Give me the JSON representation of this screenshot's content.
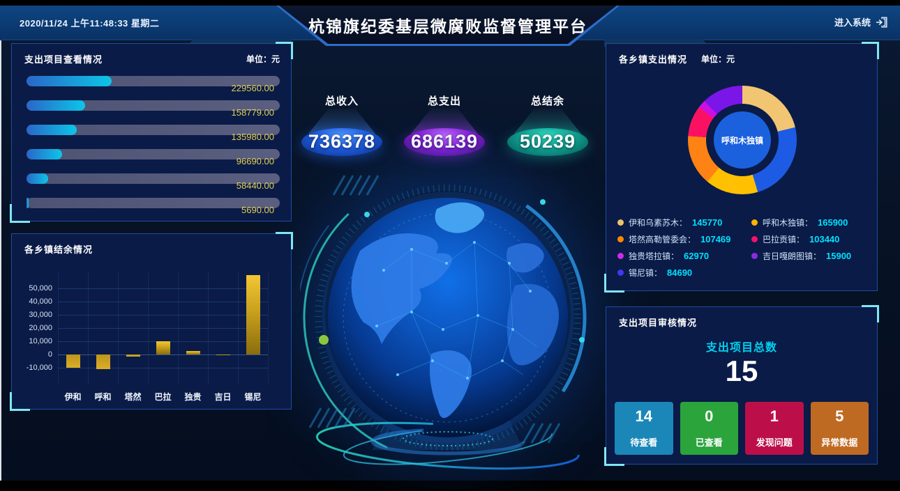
{
  "header": {
    "datetime": "2020/11/24 上午11:48:33 星期二",
    "title": "杭锦旗纪委基层微腐败监督管理平台",
    "enter_system_label": "进入系统"
  },
  "kpis": [
    {
      "label": "总收入",
      "value": "736378",
      "disc": [
        "#4f95ff",
        "#1f5ce0",
        "#0a2f80"
      ],
      "cone": "rgba(70,150,255,0.38)",
      "glow": "rgba(40,110,255,0.45)"
    },
    {
      "label": "总支出",
      "value": "686139",
      "disc": [
        "#c06aff",
        "#8a1fd8",
        "#3e0d72"
      ],
      "cone": "rgba(170,80,255,0.38)",
      "glow": "rgba(150,50,240,0.45)"
    },
    {
      "label": "总结余",
      "value": "50239",
      "disc": [
        "#2fd8c0",
        "#12a392",
        "#05554e"
      ],
      "cone": "rgba(40,210,190,0.34)",
      "glow": "rgba(20,190,170,0.40)"
    }
  ],
  "expense_view_panel": {
    "title": "支出项目查看情况",
    "unit": "单位：元",
    "bars": [
      {
        "display": "229560.00",
        "value": 229560
      },
      {
        "display": "158779.00",
        "value": 158779
      },
      {
        "display": "135980.00",
        "value": 135980
      },
      {
        "display": "96690.00",
        "value": 96690
      },
      {
        "display": "58440.00",
        "value": 58440
      },
      {
        "display": "5690.00",
        "value": 5690
      }
    ]
  },
  "balance_panel": {
    "title": "各乡镇结余情况",
    "categories": [
      "伊和",
      "呼和",
      "塔然",
      "巴拉",
      "独贵",
      "吉日",
      "锡尼"
    ],
    "values": [
      -10200,
      -11000,
      -1500,
      9800,
      2800,
      200,
      60139
    ],
    "ylim": [
      -22000,
      62000
    ],
    "yticks": [
      {
        "label": "50,000",
        "value": 50000
      },
      {
        "label": "40,000",
        "value": 40000
      },
      {
        "label": "30,000",
        "value": 30000
      },
      {
        "label": "20,000",
        "value": 20000
      },
      {
        "label": "10,000",
        "value": 10000
      },
      {
        "label": "0",
        "value": 0
      },
      {
        "label": "-10,000",
        "value": -10000
      }
    ]
  },
  "town_expense_panel": {
    "title": "各乡镇支出情况",
    "unit": "单位：元",
    "center_label": "呼和木独镇",
    "legend_separator": "：",
    "slices": [
      {
        "name": "伊和乌素苏木",
        "value": 145770,
        "color": "#f2c572"
      },
      {
        "name": "呼和木独镇",
        "value": 165900,
        "color": "#1e5be4"
      },
      {
        "name": "塔然高勒管委会",
        "value": 107469,
        "color": "#ffc002"
      },
      {
        "name": "巴拉贡镇",
        "value": 103440,
        "color": "#ff8314"
      },
      {
        "name": "独贵塔拉镇",
        "value": 62970,
        "color": "#fb1162"
      },
      {
        "name": "吉日嘎朗图镇",
        "value": 15900,
        "color": "#cb11e0"
      },
      {
        "name": "锡尼镇",
        "value": 84690,
        "color": "#7b16e8"
      }
    ],
    "legend": [
      {
        "name": "伊和乌素苏木",
        "value": "145770",
        "dot": "#e9c46a"
      },
      {
        "name": "塔然高勒管委会",
        "value": "107469",
        "dot": "#ff8800"
      },
      {
        "name": "独贵塔拉镇",
        "value": "62970",
        "dot": "#cc2be8"
      },
      {
        "name": "锡尼镇",
        "value": "84690",
        "dot": "#4338f0"
      },
      {
        "name": "呼和木独镇",
        "value": "165900",
        "dot": "#ffb400"
      },
      {
        "name": "巴拉贡镇",
        "value": "103440",
        "dot": "#f5116b"
      },
      {
        "name": "吉日嘎朗图镇",
        "value": "15900",
        "dot": "#8b2be2"
      }
    ]
  },
  "audit_panel": {
    "title": "支出项目审核情况",
    "total_label": "支出项目总数",
    "total_value": "15",
    "cards": [
      {
        "value": "14",
        "label": "待查看",
        "color": "#1a87b8"
      },
      {
        "value": "0",
        "label": "已查看",
        "color": "#2ba43c"
      },
      {
        "value": "1",
        "label": "发现问题",
        "color": "#bc0f49"
      },
      {
        "value": "5",
        "label": "异常数据",
        "color": "#bf6a22"
      }
    ]
  },
  "chart_data": [
    {
      "type": "bar",
      "orientation": "horizontal",
      "title": "支出项目查看情况",
      "unit": "元",
      "values": [
        229560,
        158779,
        135980,
        96690,
        58440,
        5690
      ],
      "labels": [
        "229560.00",
        "158779.00",
        "135980.00",
        "96690.00",
        "58440.00",
        "5690.00"
      ]
    },
    {
      "type": "bar",
      "title": "各乡镇结余情况",
      "categories": [
        "伊和",
        "呼和",
        "塔然",
        "巴拉",
        "独贵",
        "吉日",
        "锡尼"
      ],
      "values": [
        -10200,
        -11000,
        -1500,
        9800,
        2800,
        200,
        60139
      ],
      "ylim": [
        -22000,
        62000
      ],
      "grid": true
    },
    {
      "type": "pie",
      "title": "各乡镇支出情况",
      "unit": "元",
      "center_label": "呼和木独镇",
      "labels": [
        "伊和乌素苏木",
        "呼和木独镇",
        "塔然高勒管委会",
        "巴拉贡镇",
        "独贵塔拉镇",
        "吉日嘎朗图镇",
        "锡尼镇"
      ],
      "values": [
        145770,
        165900,
        107469,
        103440,
        62970,
        15900,
        84690
      ],
      "colors": [
        "#f2c572",
        "#1e5be4",
        "#ffc002",
        "#ff8314",
        "#fb1162",
        "#cb11e0",
        "#7b16e8"
      ]
    }
  ]
}
